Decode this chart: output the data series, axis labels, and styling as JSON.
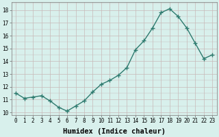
{
  "x": [
    0,
    1,
    2,
    3,
    4,
    5,
    6,
    7,
    8,
    9,
    10,
    11,
    12,
    13,
    14,
    15,
    16,
    17,
    18,
    19,
    20,
    21,
    22,
    23
  ],
  "y": [
    11.5,
    11.1,
    11.2,
    11.3,
    10.9,
    10.4,
    10.1,
    10.5,
    10.9,
    11.6,
    12.2,
    12.5,
    12.9,
    13.5,
    14.9,
    15.6,
    16.6,
    17.8,
    18.1,
    17.5,
    16.6,
    15.4,
    14.2,
    14.5
  ],
  "xlabel": "Humidex (Indice chaleur)",
  "ylabel": "",
  "xlim": [
    -0.5,
    23.5
  ],
  "ylim": [
    9.8,
    18.6
  ],
  "yticks": [
    10,
    11,
    12,
    13,
    14,
    15,
    16,
    17,
    18
  ],
  "xticks": [
    0,
    1,
    2,
    3,
    4,
    5,
    6,
    7,
    8,
    9,
    10,
    11,
    12,
    13,
    14,
    15,
    16,
    17,
    18,
    19,
    20,
    21,
    22,
    23
  ],
  "line_color": "#2d7a6e",
  "marker": "+",
  "marker_size": 4,
  "line_width": 1.0,
  "background_color": "#d8f0ec",
  "grid_color": "#c8b8b8",
  "tick_fontsize": 5.5,
  "label_fontsize": 7.5
}
